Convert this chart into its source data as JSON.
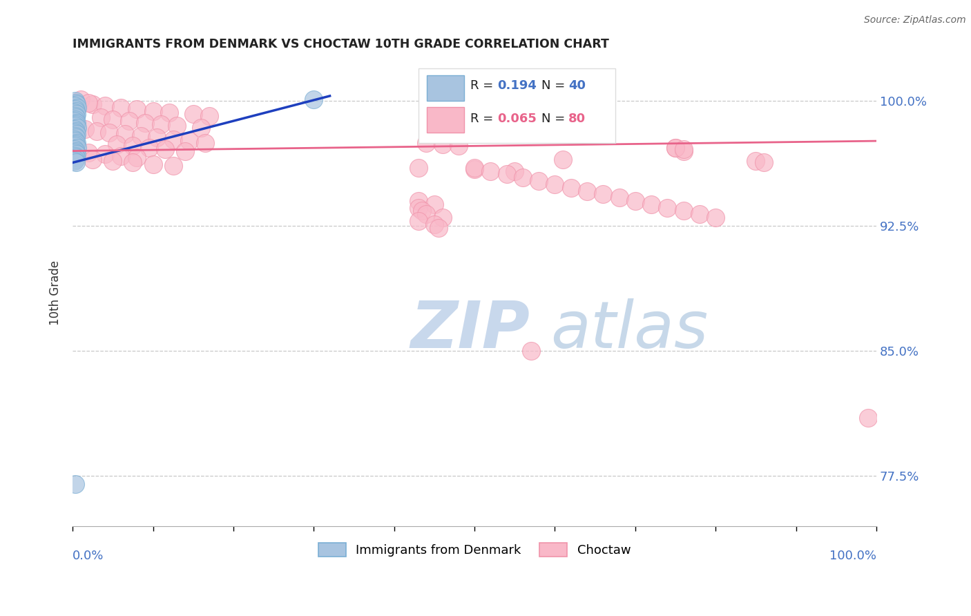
{
  "title": "IMMIGRANTS FROM DENMARK VS CHOCTAW 10TH GRADE CORRELATION CHART",
  "source": "Source: ZipAtlas.com",
  "ylabel": "10th Grade",
  "ytick_labels": [
    "77.5%",
    "85.0%",
    "92.5%",
    "100.0%"
  ],
  "ytick_values": [
    0.775,
    0.85,
    0.925,
    1.0
  ],
  "legend_blue_r_val": "0.194",
  "legend_blue_n_val": "40",
  "legend_pink_r_val": "0.065",
  "legend_pink_n_val": "80",
  "legend_label_blue": "Immigrants from Denmark",
  "legend_label_pink": "Choctaw",
  "watermark_zip": "ZIP",
  "watermark_atlas": "atlas",
  "blue_color_face": "#A8C4E0",
  "blue_color_edge": "#7BAFD4",
  "pink_color_face": "#F9B8C8",
  "pink_color_edge": "#F093AA",
  "blue_line_color": "#1E3FBE",
  "pink_line_color": "#E8638A",
  "background_color": "#FFFFFF",
  "xlim": [
    0.0,
    1.0
  ],
  "ylim": [
    0.745,
    1.025
  ],
  "blue_trend_x": [
    0.0,
    0.32
  ],
  "blue_trend_y": [
    0.963,
    1.003
  ],
  "pink_trend_x": [
    0.0,
    1.0
  ],
  "pink_trend_y": [
    0.97,
    0.976
  ],
  "blue_x": [
    0.003,
    0.004,
    0.005,
    0.002,
    0.006,
    0.003,
    0.004,
    0.002,
    0.005,
    0.003,
    0.004,
    0.003,
    0.002,
    0.005,
    0.004,
    0.003,
    0.006,
    0.002,
    0.004,
    0.003,
    0.005,
    0.003,
    0.004,
    0.002,
    0.003,
    0.005,
    0.004,
    0.003,
    0.006,
    0.002,
    0.004,
    0.003,
    0.005,
    0.003,
    0.004,
    0.003,
    0.002,
    0.004,
    0.3,
    0.003
  ],
  "blue_y": [
    1.0,
    0.999,
    0.998,
    0.997,
    0.996,
    0.995,
    0.994,
    0.993,
    0.992,
    0.991,
    0.99,
    0.989,
    0.988,
    0.987,
    0.986,
    0.985,
    0.984,
    0.983,
    0.982,
    0.981,
    0.98,
    0.979,
    0.978,
    0.977,
    0.976,
    0.975,
    0.974,
    0.973,
    0.972,
    0.971,
    0.97,
    0.969,
    0.968,
    0.967,
    0.966,
    0.965,
    0.964,
    0.963,
    1.001,
    0.77
  ],
  "pink_x": [
    0.01,
    0.025,
    0.04,
    0.06,
    0.08,
    0.1,
    0.12,
    0.15,
    0.17,
    0.02,
    0.035,
    0.05,
    0.07,
    0.09,
    0.11,
    0.13,
    0.16,
    0.015,
    0.03,
    0.045,
    0.065,
    0.085,
    0.105,
    0.125,
    0.145,
    0.165,
    0.055,
    0.075,
    0.095,
    0.115,
    0.14,
    0.02,
    0.04,
    0.06,
    0.08,
    0.025,
    0.05,
    0.075,
    0.1,
    0.125,
    0.44,
    0.46,
    0.48,
    0.75,
    0.76,
    0.43,
    0.5,
    0.55,
    0.43,
    0.45,
    0.43,
    0.435,
    0.44,
    0.46,
    0.43,
    0.45,
    0.455,
    0.5,
    0.52,
    0.54,
    0.56,
    0.58,
    0.6,
    0.62,
    0.64,
    0.66,
    0.68,
    0.7,
    0.72,
    0.74,
    0.76,
    0.78,
    0.8,
    0.75,
    0.76,
    0.61,
    0.85,
    0.86,
    0.57,
    0.99
  ],
  "pink_y": [
    1.001,
    0.998,
    0.997,
    0.996,
    0.995,
    0.994,
    0.993,
    0.992,
    0.991,
    0.999,
    0.99,
    0.989,
    0.988,
    0.987,
    0.986,
    0.985,
    0.984,
    0.983,
    0.982,
    0.981,
    0.98,
    0.979,
    0.978,
    0.977,
    0.976,
    0.975,
    0.974,
    0.973,
    0.972,
    0.971,
    0.97,
    0.969,
    0.968,
    0.967,
    0.966,
    0.965,
    0.964,
    0.963,
    0.962,
    0.961,
    0.975,
    0.974,
    0.973,
    0.972,
    0.97,
    0.96,
    0.959,
    0.958,
    0.94,
    0.938,
    0.936,
    0.934,
    0.932,
    0.93,
    0.928,
    0.926,
    0.924,
    0.96,
    0.958,
    0.956,
    0.954,
    0.952,
    0.95,
    0.948,
    0.946,
    0.944,
    0.942,
    0.94,
    0.938,
    0.936,
    0.934,
    0.932,
    0.93,
    0.972,
    0.971,
    0.965,
    0.964,
    0.963,
    0.85,
    0.81
  ]
}
